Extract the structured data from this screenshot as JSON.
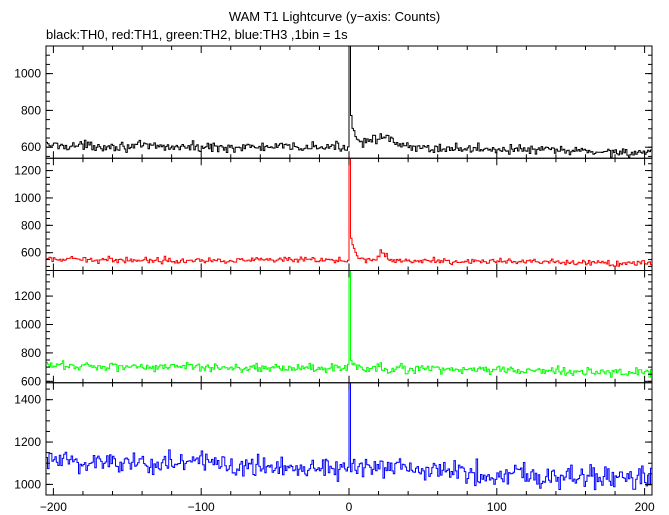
{
  "chart_data": {
    "type": "line",
    "title": "WAM T1 Lightcurve (y−axis: Counts)",
    "subtitle": "black:TH0, red:TH1, green:TH2, blue:TH3 ,1bin = 1s",
    "xlim": [
      -205,
      205
    ],
    "x_ticks": [
      -200,
      -100,
      0,
      100,
      200
    ],
    "x_tick_labels": [
      "−200",
      "−100",
      "0",
      "100",
      "200"
    ],
    "bin_seconds": 1,
    "grid": false,
    "panels": [
      {
        "name": "TH0",
        "color": "#000000",
        "ylim": [
          540,
          1150
        ],
        "yticks": [
          600,
          800,
          1000
        ],
        "ytick_labels": [
          "600",
          "800",
          "1000"
        ],
        "baseline": [
          [
            -200,
            610
          ],
          [
            -100,
            600
          ],
          [
            0,
            600
          ],
          [
            100,
            590
          ],
          [
            200,
            570
          ]
        ],
        "noise": 18,
        "peak": 1150,
        "decay_s": 3,
        "decay_amp": 220,
        "bumps": [
          {
            "x": 20,
            "amp": 55,
            "width": 12
          }
        ],
        "series_points": [
          [
            -200,
            610
          ],
          [
            -100,
            600
          ],
          [
            -1,
            600
          ],
          [
            0,
            1150
          ],
          [
            1,
            820
          ],
          [
            3,
            700
          ],
          [
            10,
            620
          ],
          [
            20,
            650
          ],
          [
            35,
            620
          ],
          [
            100,
            590
          ],
          [
            200,
            570
          ]
        ]
      },
      {
        "name": "TH1",
        "color": "#ff0000",
        "ylim": [
          470,
          1290
        ],
        "yticks": [
          600,
          800,
          1000,
          1200
        ],
        "ytick_labels": [
          "600",
          "800",
          "1000",
          "1200"
        ],
        "baseline": [
          [
            -200,
            550
          ],
          [
            -100,
            545
          ],
          [
            0,
            545
          ],
          [
            100,
            535
          ],
          [
            200,
            520
          ]
        ],
        "noise": 15,
        "peak": 1290,
        "decay_s": 3,
        "decay_amp": 220,
        "bumps": [
          {
            "x": 22,
            "amp": 60,
            "width": 4
          }
        ],
        "series_points": [
          [
            -200,
            550
          ],
          [
            -100,
            545
          ],
          [
            -1,
            545
          ],
          [
            0,
            1290
          ],
          [
            1,
            780
          ],
          [
            3,
            650
          ],
          [
            10,
            575
          ],
          [
            22,
            640
          ],
          [
            35,
            560
          ],
          [
            100,
            535
          ],
          [
            200,
            520
          ]
        ]
      },
      {
        "name": "TH2",
        "color": "#00ff00",
        "ylim": [
          590,
          1380
        ],
        "yticks": [
          600,
          800,
          1000,
          1200
        ],
        "ytick_labels": [
          "600",
          "800",
          "1000",
          "1200"
        ],
        "baseline": [
          [
            -200,
            710
          ],
          [
            -100,
            700
          ],
          [
            0,
            690
          ],
          [
            100,
            680
          ],
          [
            200,
            660
          ]
        ],
        "noise": 22,
        "peak": 1380,
        "decay_s": 2,
        "decay_amp": 100,
        "bumps": [],
        "series_points": [
          [
            -200,
            710
          ],
          [
            -100,
            700
          ],
          [
            -1,
            690
          ],
          [
            0,
            1380
          ],
          [
            1,
            830
          ],
          [
            5,
            700
          ],
          [
            100,
            680
          ],
          [
            200,
            660
          ]
        ]
      },
      {
        "name": "TH3",
        "color": "#0000ff",
        "ylim": [
          950,
          1480
        ],
        "yticks": [
          1000,
          1200,
          1400
        ],
        "ytick_labels": [
          "1000",
          "1200",
          "1400"
        ],
        "baseline": [
          [
            -200,
            1110
          ],
          [
            -100,
            1100
          ],
          [
            0,
            1080
          ],
          [
            100,
            1050
          ],
          [
            200,
            1030
          ]
        ],
        "noise": 40,
        "peak": 1480,
        "decay_s": 1,
        "decay_amp": 0,
        "bumps": [],
        "series_points": [
          [
            -200,
            1110
          ],
          [
            -100,
            1100
          ],
          [
            -1,
            1080
          ],
          [
            0,
            1480
          ],
          [
            1,
            1100
          ],
          [
            100,
            1050
          ],
          [
            200,
            1030
          ]
        ]
      }
    ]
  }
}
